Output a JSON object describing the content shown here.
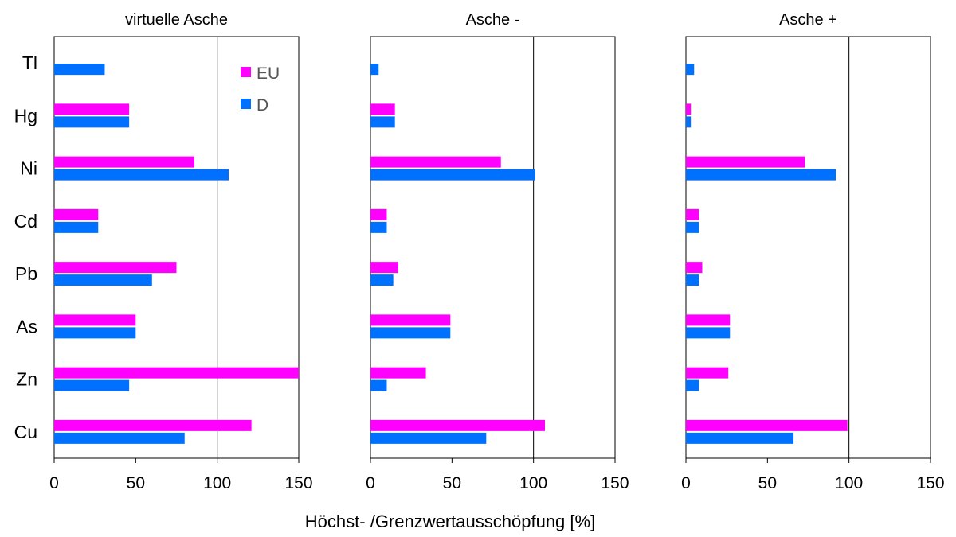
{
  "chart_data": {
    "type": "bar",
    "orientation": "horizontal",
    "categories": [
      "Tl",
      "Hg",
      "Ni",
      "Cd",
      "Pb",
      "As",
      "Zn",
      "Cu"
    ],
    "xlabel": "Höchst- /Grenzwertausschöpfung [%]",
    "xlim": [
      0,
      150
    ],
    "xticks": [
      "0",
      "50",
      "100",
      "150"
    ],
    "reference_line": 100,
    "grid": false,
    "legend": {
      "placement": "top-right of first panel",
      "entries": [
        {
          "name": "EU",
          "color": "#ff00ff"
        },
        {
          "name": "D",
          "color": "#0070ff"
        }
      ]
    },
    "panels": [
      {
        "title": "virtuelle Asche",
        "series": [
          {
            "name": "EU",
            "values": [
              null,
              46,
              86,
              27,
              75,
              50,
              150,
              121
            ]
          },
          {
            "name": "D",
            "values": [
              31,
              46,
              107,
              27,
              60,
              50,
              46,
              80
            ]
          }
        ]
      },
      {
        "title": "Asche -",
        "series": [
          {
            "name": "EU",
            "values": [
              null,
              15,
              80,
              10,
              17,
              49,
              34,
              107
            ]
          },
          {
            "name": "D",
            "values": [
              5,
              15,
              101,
              10,
              14,
              49,
              10,
              71
            ]
          }
        ]
      },
      {
        "title": "Asche +",
        "series": [
          {
            "name": "EU",
            "values": [
              null,
              3,
              73,
              8,
              10,
              27,
              26,
              99
            ]
          },
          {
            "name": "D",
            "values": [
              5,
              3,
              92,
              8,
              8,
              27,
              8,
              66
            ]
          }
        ]
      }
    ]
  }
}
